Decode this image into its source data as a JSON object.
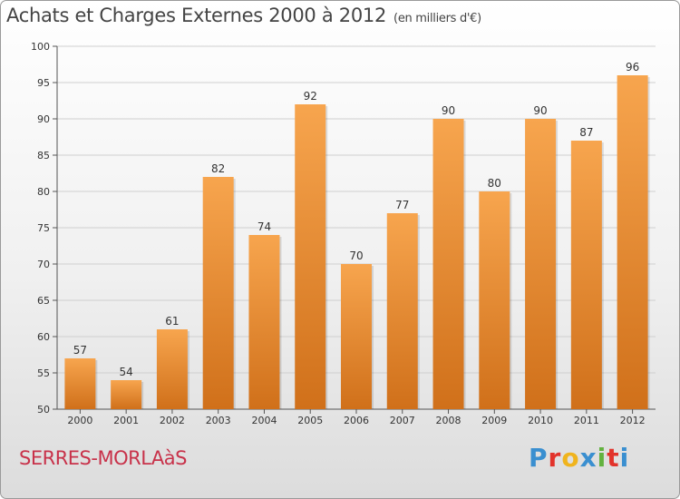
{
  "header": {
    "title": "Achats et Charges Externes 2000 à 2012",
    "unit": "(en milliers d'€)"
  },
  "footer": {
    "commune": "SERRES-MORLAàS",
    "logo": "Proxiti"
  },
  "colors": {
    "bar_top": "#f7a54e",
    "bar_bottom": "#d0701a",
    "grid": "#cfcfcf",
    "axis": "#555555"
  },
  "chart_data": {
    "type": "bar",
    "title": "Achats et Charges Externes 2000 à 2012",
    "subtitle": "(en milliers d'€)",
    "categories": [
      "2000",
      "2001",
      "2002",
      "2003",
      "2004",
      "2005",
      "2006",
      "2007",
      "2008",
      "2009",
      "2010",
      "2011",
      "2012"
    ],
    "values": [
      57,
      54,
      61,
      82,
      74,
      92,
      70,
      77,
      90,
      80,
      90,
      87,
      96
    ],
    "ylim": [
      50,
      100
    ],
    "yticks": [
      50,
      55,
      60,
      65,
      70,
      75,
      80,
      85,
      90,
      95,
      100
    ],
    "grid": true,
    "data_labels": true
  }
}
